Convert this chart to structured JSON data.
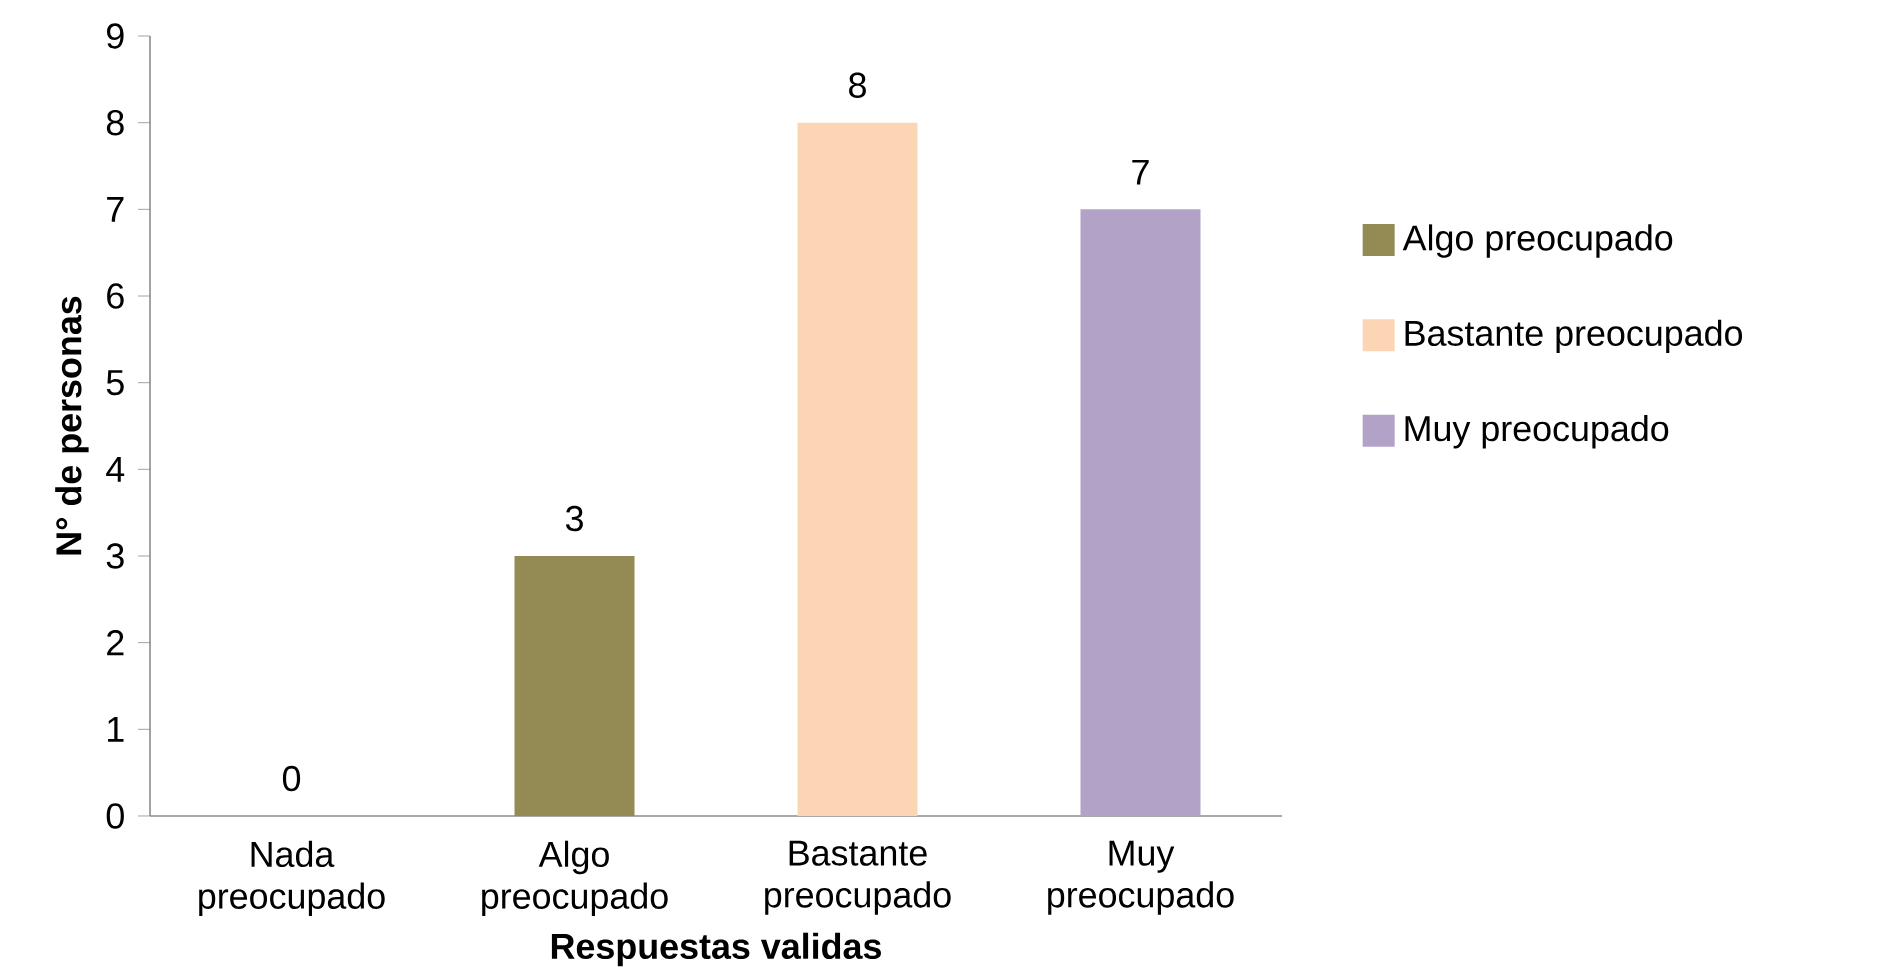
{
  "chart_data": {
    "type": "bar",
    "xlabel": "Respuestas validas",
    "ylabel": "N° de personas",
    "categories": [
      "Nada preocupado",
      "Algo preocupado",
      "Bastante preocupado",
      "Muy preocupado"
    ],
    "series": [
      {
        "color": "#4f81bd",
        "values": [
          0,
          null,
          null,
          null
        ]
      },
      {
        "name": "Algo preocupado",
        "color": "#948a54",
        "values": [
          null,
          3,
          null,
          null
        ]
      },
      {
        "name": "Bastante preocupado",
        "color": "#fcd5b5",
        "values": [
          null,
          null,
          8,
          null
        ]
      },
      {
        "name": "Muy preocupado",
        "color": "#b3a2c7",
        "values": [
          null,
          null,
          null,
          7
        ]
      }
    ],
    "ylim": [
      0,
      9
    ],
    "yticks": [
      0,
      1,
      2,
      3,
      4,
      5,
      6,
      7,
      8,
      9
    ],
    "data_labels": true,
    "legend": "right",
    "grid": false
  }
}
